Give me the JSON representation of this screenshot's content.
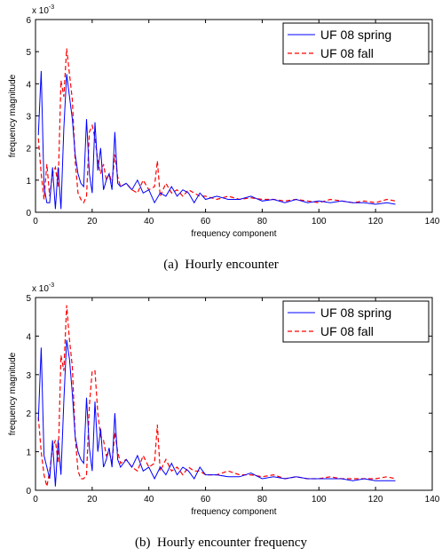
{
  "chart_data": [
    {
      "type": "line",
      "caption": "(a)  Hourly encounter",
      "xlabel": "frequency component",
      "ylabel": "frequency magnitude",
      "exponent_label": "x 10",
      "exponent_power": "-3",
      "xlim": [
        0,
        140
      ],
      "ylim": [
        0,
        6
      ],
      "xticks": [
        "0",
        "20",
        "40",
        "60",
        "80",
        "100",
        "120",
        "140"
      ],
      "yticks": [
        "0",
        "1",
        "2",
        "3",
        "4",
        "5",
        "6"
      ],
      "legend_position": "top-right",
      "series": [
        {
          "name": "UF 08 spring",
          "color": "#0000ff",
          "style": "solid",
          "x": [
            1,
            2,
            3,
            4,
            5,
            6,
            7,
            8,
            9,
            10,
            11,
            12,
            13,
            14,
            15,
            16,
            17,
            18,
            19,
            20,
            21,
            22,
            23,
            24,
            25,
            26,
            27,
            28,
            29,
            30,
            32,
            34,
            36,
            38,
            40,
            42,
            44,
            46,
            48,
            50,
            52,
            54,
            56,
            58,
            60,
            64,
            68,
            72,
            76,
            80,
            84,
            88,
            92,
            96,
            100,
            104,
            108,
            112,
            116,
            120,
            124,
            127
          ],
          "y": [
            2.4,
            4.4,
            0.8,
            0.3,
            0.3,
            1.4,
            0.1,
            1.4,
            0.1,
            2.6,
            4.3,
            3.6,
            2.9,
            1.8,
            1.2,
            0.9,
            0.8,
            2.9,
            1.2,
            0.6,
            2.8,
            1.3,
            2.0,
            0.7,
            1.0,
            1.2,
            0.7,
            2.5,
            0.9,
            0.8,
            0.9,
            0.7,
            1.0,
            0.6,
            0.7,
            0.3,
            0.6,
            0.5,
            0.8,
            0.5,
            0.7,
            0.6,
            0.3,
            0.6,
            0.4,
            0.5,
            0.4,
            0.4,
            0.5,
            0.35,
            0.4,
            0.3,
            0.4,
            0.3,
            0.35,
            0.3,
            0.35,
            0.3,
            0.3,
            0.25,
            0.3,
            0.25
          ]
        },
        {
          "name": "UF 08 fall",
          "color": "#ff0000",
          "style": "dashed",
          "x": [
            1,
            2,
            3,
            4,
            5,
            6,
            7,
            8,
            9,
            10,
            11,
            12,
            13,
            14,
            15,
            16,
            17,
            18,
            19,
            20,
            21,
            22,
            23,
            24,
            25,
            26,
            27,
            28,
            29,
            30,
            32,
            34,
            36,
            38,
            40,
            42,
            43,
            44,
            46,
            48,
            50,
            52,
            54,
            56,
            58,
            60,
            64,
            68,
            72,
            76,
            80,
            84,
            88,
            92,
            96,
            100,
            104,
            108,
            112,
            116,
            120,
            124,
            127
          ],
          "y": [
            2.3,
            1.2,
            0.4,
            1.5,
            0.5,
            1.2,
            1.4,
            0.8,
            4.1,
            3.6,
            5.1,
            4.3,
            3.5,
            1.6,
            0.6,
            0.4,
            0.3,
            0.5,
            2.5,
            2.7,
            2.3,
            1.6,
            1.2,
            1.5,
            1.0,
            1.2,
            0.9,
            1.8,
            1.1,
            0.8,
            0.9,
            0.7,
            0.6,
            1.0,
            0.7,
            0.8,
            1.6,
            0.5,
            0.9,
            0.6,
            0.7,
            0.5,
            0.7,
            0.6,
            0.5,
            0.5,
            0.4,
            0.5,
            0.4,
            0.45,
            0.4,
            0.4,
            0.35,
            0.4,
            0.35,
            0.3,
            0.4,
            0.35,
            0.3,
            0.35,
            0.3,
            0.4,
            0.35
          ]
        }
      ]
    },
    {
      "type": "line",
      "caption": "(b)  Hourly encounter frequency",
      "xlabel": "frequency component",
      "ylabel": "frequency magnitude",
      "exponent_label": "x 10",
      "exponent_power": "-3",
      "xlim": [
        0,
        140
      ],
      "ylim": [
        0,
        5
      ],
      "xticks": [
        "0",
        "20",
        "40",
        "60",
        "80",
        "100",
        "120",
        "140"
      ],
      "yticks": [
        "0",
        "1",
        "2",
        "3",
        "4",
        "5"
      ],
      "legend_position": "top-right",
      "series": [
        {
          "name": "UF 08 spring",
          "color": "#0000ff",
          "style": "solid",
          "x": [
            1,
            2,
            3,
            4,
            5,
            6,
            7,
            8,
            9,
            10,
            11,
            12,
            13,
            14,
            15,
            16,
            17,
            18,
            19,
            20,
            21,
            22,
            23,
            24,
            25,
            26,
            27,
            28,
            29,
            30,
            32,
            34,
            36,
            38,
            40,
            42,
            44,
            46,
            48,
            50,
            52,
            54,
            56,
            58,
            60,
            64,
            68,
            72,
            76,
            80,
            84,
            88,
            92,
            96,
            100,
            104,
            108,
            112,
            116,
            120,
            124,
            127
          ],
          "y": [
            1.8,
            3.7,
            0.9,
            0.6,
            0.3,
            1.3,
            0.1,
            1.3,
            0.4,
            2.3,
            3.9,
            3.4,
            2.5,
            1.4,
            1.0,
            0.8,
            0.7,
            2.4,
            1.1,
            0.5,
            2.3,
            1.0,
            1.6,
            0.6,
            0.8,
            1.1,
            0.6,
            2.0,
            0.8,
            0.6,
            0.8,
            0.6,
            0.9,
            0.5,
            0.6,
            0.3,
            0.6,
            0.4,
            0.7,
            0.4,
            0.6,
            0.5,
            0.3,
            0.6,
            0.4,
            0.4,
            0.35,
            0.35,
            0.45,
            0.3,
            0.35,
            0.3,
            0.35,
            0.3,
            0.3,
            0.3,
            0.3,
            0.25,
            0.3,
            0.25,
            0.25,
            0.25
          ]
        },
        {
          "name": "UF 08 fall",
          "color": "#ff0000",
          "style": "dashed",
          "x": [
            1,
            2,
            3,
            4,
            5,
            6,
            7,
            8,
            9,
            10,
            11,
            12,
            13,
            14,
            15,
            16,
            17,
            18,
            19,
            20,
            21,
            22,
            23,
            24,
            25,
            26,
            27,
            28,
            29,
            30,
            32,
            34,
            36,
            38,
            40,
            42,
            43,
            44,
            46,
            48,
            50,
            52,
            54,
            56,
            58,
            60,
            64,
            68,
            72,
            76,
            80,
            84,
            88,
            92,
            96,
            100,
            104,
            108,
            112,
            116,
            120,
            124,
            127
          ],
          "y": [
            1.9,
            1.0,
            0.4,
            0.1,
            0.5,
            1.1,
            1.3,
            0.7,
            3.5,
            3.1,
            4.8,
            3.9,
            3.2,
            1.4,
            0.5,
            0.3,
            0.3,
            0.4,
            2.2,
            3.1,
            3.1,
            2.0,
            1.4,
            1.3,
            0.9,
            1.0,
            0.7,
            1.5,
            1.0,
            0.7,
            0.8,
            0.6,
            0.5,
            0.9,
            0.6,
            0.7,
            1.7,
            0.5,
            0.8,
            0.5,
            0.6,
            0.4,
            0.6,
            0.5,
            0.5,
            0.4,
            0.4,
            0.5,
            0.4,
            0.4,
            0.35,
            0.4,
            0.3,
            0.35,
            0.3,
            0.3,
            0.35,
            0.3,
            0.3,
            0.3,
            0.3,
            0.35,
            0.3
          ]
        }
      ]
    }
  ]
}
